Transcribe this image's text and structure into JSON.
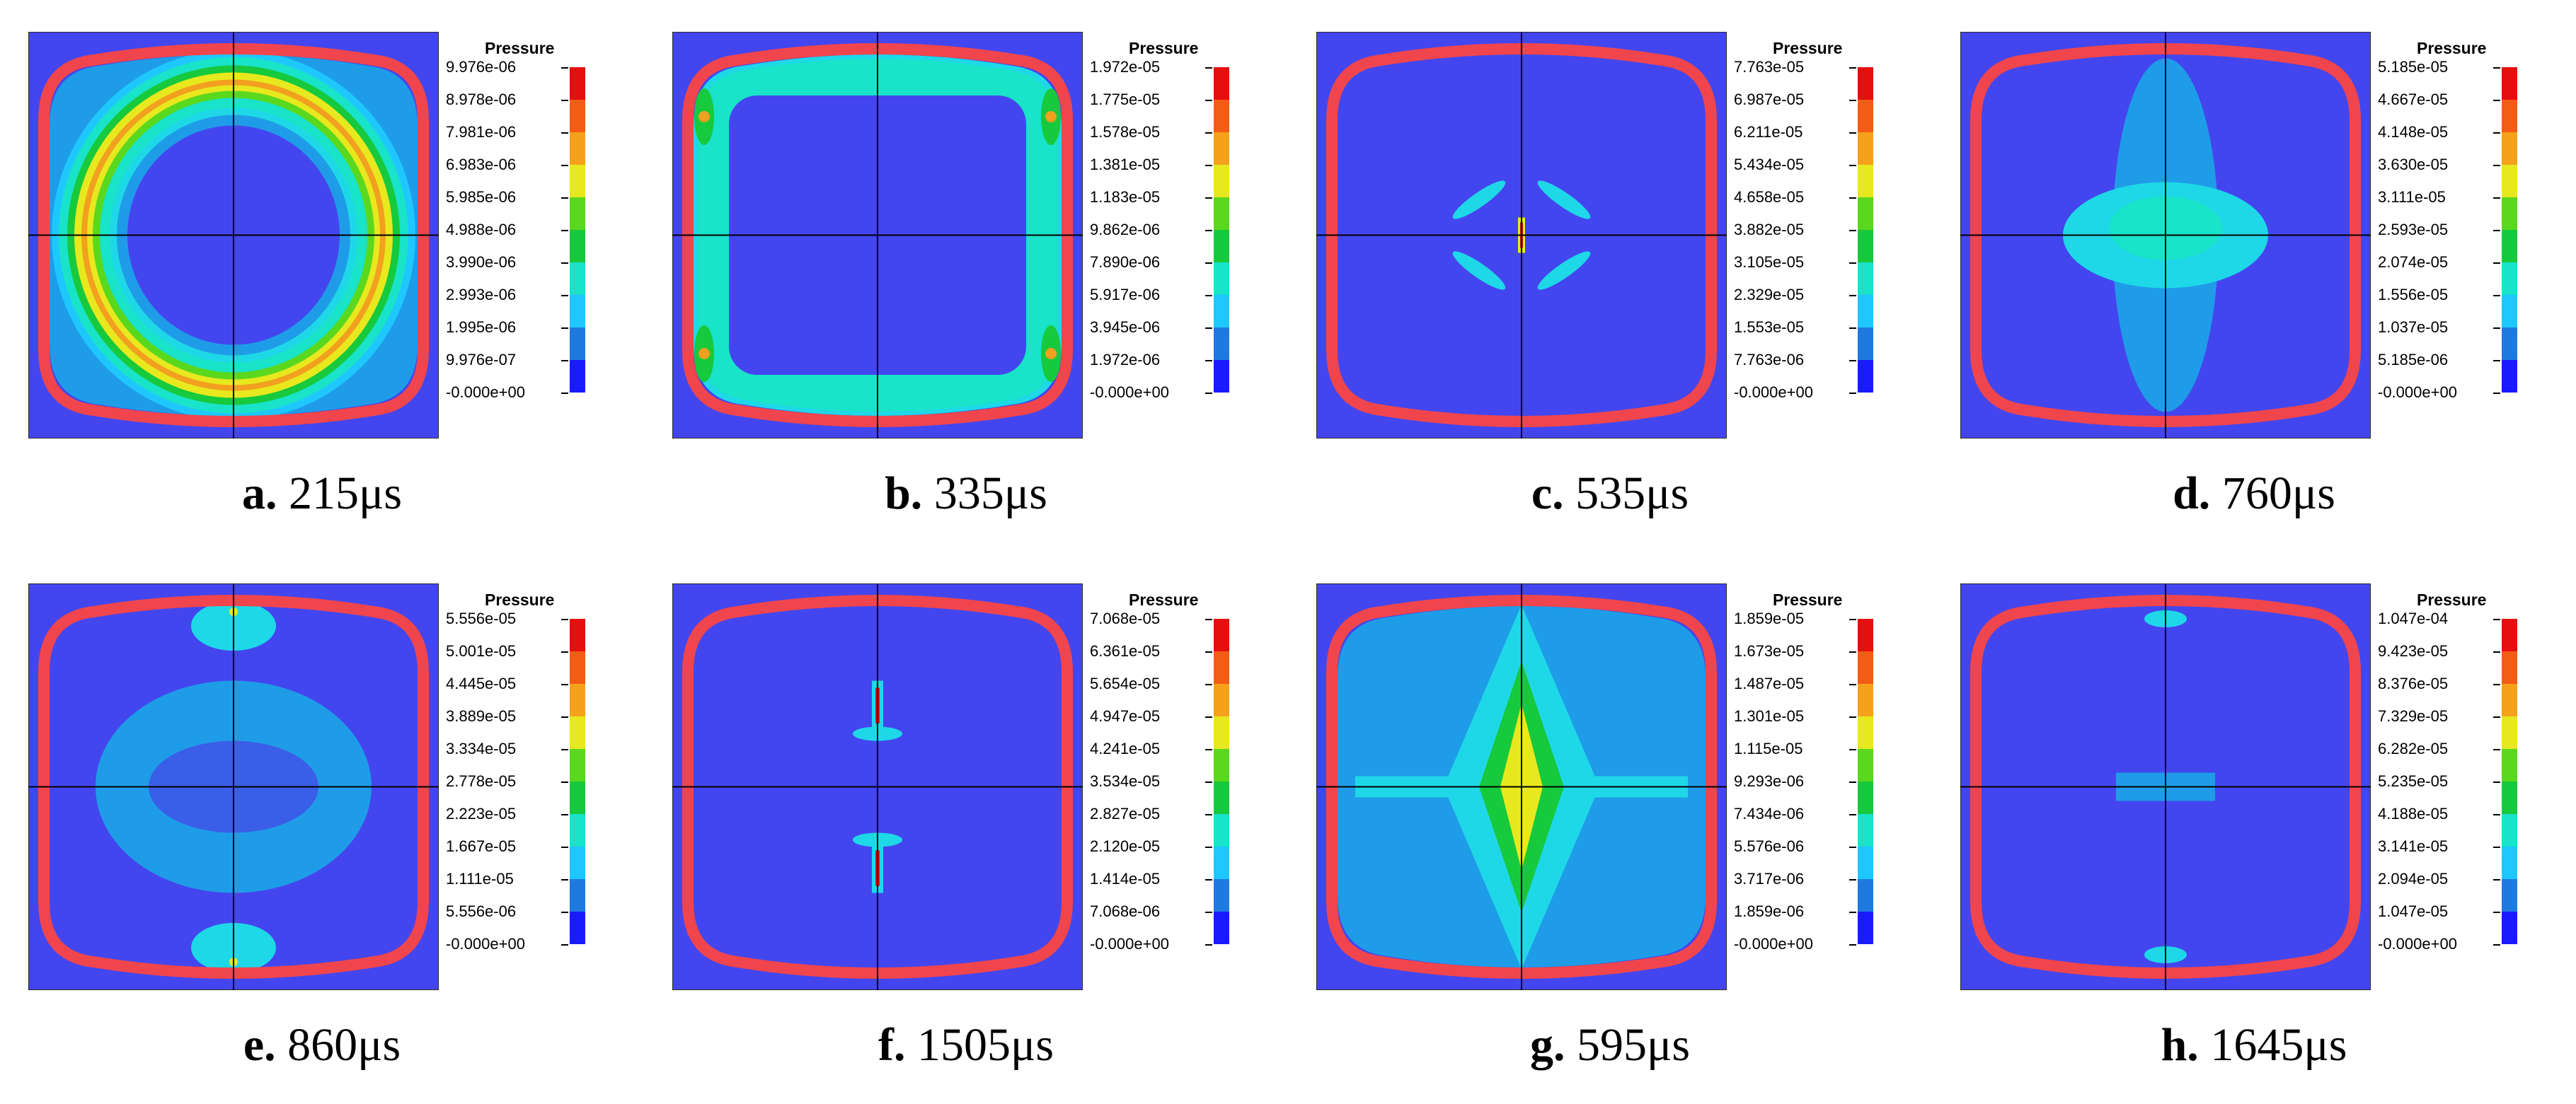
{
  "legend_title": "Pressure",
  "colorscale": [
    "#1a1aff",
    "#1f7ae0",
    "#1ec8ff",
    "#19e3c8",
    "#17c93c",
    "#5ad81e",
    "#e8e81e",
    "#f4a21a",
    "#f25c15",
    "#e60f0f"
  ],
  "colors": {
    "background": "#4346ee",
    "wall": "#f0454d",
    "light_blue": "#1f9ce8",
    "cyan": "#1ed8e8",
    "green": "#2bd35a",
    "yellow": "#e6e823",
    "orange": "#f2a01f"
  },
  "panels": [
    {
      "letter": "a.",
      "time": "215μs",
      "labels": [
        "9.976e-06",
        "8.978e-06",
        "7.981e-06",
        "6.983e-06",
        "5.985e-06",
        "4.988e-06",
        "3.990e-06",
        "2.993e-06",
        "1.995e-06",
        "9.976e-07",
        "-0.000e+00"
      ]
    },
    {
      "letter": "b.",
      "time": "335μs",
      "labels": [
        "1.972e-05",
        "1.775e-05",
        "1.578e-05",
        "1.381e-05",
        "1.183e-05",
        "9.862e-06",
        "7.890e-06",
        "5.917e-06",
        "3.945e-06",
        "1.972e-06",
        "-0.000e+00"
      ]
    },
    {
      "letter": "c.",
      "time": "535μs",
      "labels": [
        "7.763e-05",
        "6.987e-05",
        "6.211e-05",
        "5.434e-05",
        "4.658e-05",
        "3.882e-05",
        "3.105e-05",
        "2.329e-05",
        "1.553e-05",
        "7.763e-06",
        "-0.000e+00"
      ]
    },
    {
      "letter": "d.",
      "time": "760μs",
      "labels": [
        "5.185e-05",
        "4.667e-05",
        "4.148e-05",
        "3.630e-05",
        "3.111e-05",
        "2.593e-05",
        "2.074e-05",
        "1.556e-05",
        "1.037e-05",
        "5.185e-06",
        "-0.000e+00"
      ]
    },
    {
      "letter": "e.",
      "time": "860μs",
      "labels": [
        "5.556e-05",
        "5.001e-05",
        "4.445e-05",
        "3.889e-05",
        "3.334e-05",
        "2.778e-05",
        "2.223e-05",
        "1.667e-05",
        "1.111e-05",
        "5.556e-06",
        "-0.000e+00"
      ]
    },
    {
      "letter": "f.",
      "time": "1505μs",
      "labels": [
        "7.068e-05",
        "6.361e-05",
        "5.654e-05",
        "4.947e-05",
        "4.241e-05",
        "3.534e-05",
        "2.827e-05",
        "2.120e-05",
        "1.414e-05",
        "7.068e-06",
        "-0.000e+00"
      ]
    },
    {
      "letter": "g.",
      "time": "595μs",
      "labels": [
        "1.859e-05",
        "1.673e-05",
        "1.487e-05",
        "1.301e-05",
        "1.115e-05",
        "9.293e-06",
        "7.434e-06",
        "5.576e-06",
        "3.717e-06",
        "1.859e-06",
        "-0.000e+00"
      ]
    },
    {
      "letter": "h.",
      "time": "1645μs",
      "labels": [
        "1.047e-04",
        "9.423e-05",
        "8.376e-05",
        "7.329e-05",
        "6.282e-05",
        "5.235e-05",
        "4.188e-05",
        "3.141e-05",
        "2.094e-05",
        "1.047e-05",
        "-0.000e+00"
      ]
    }
  ]
}
